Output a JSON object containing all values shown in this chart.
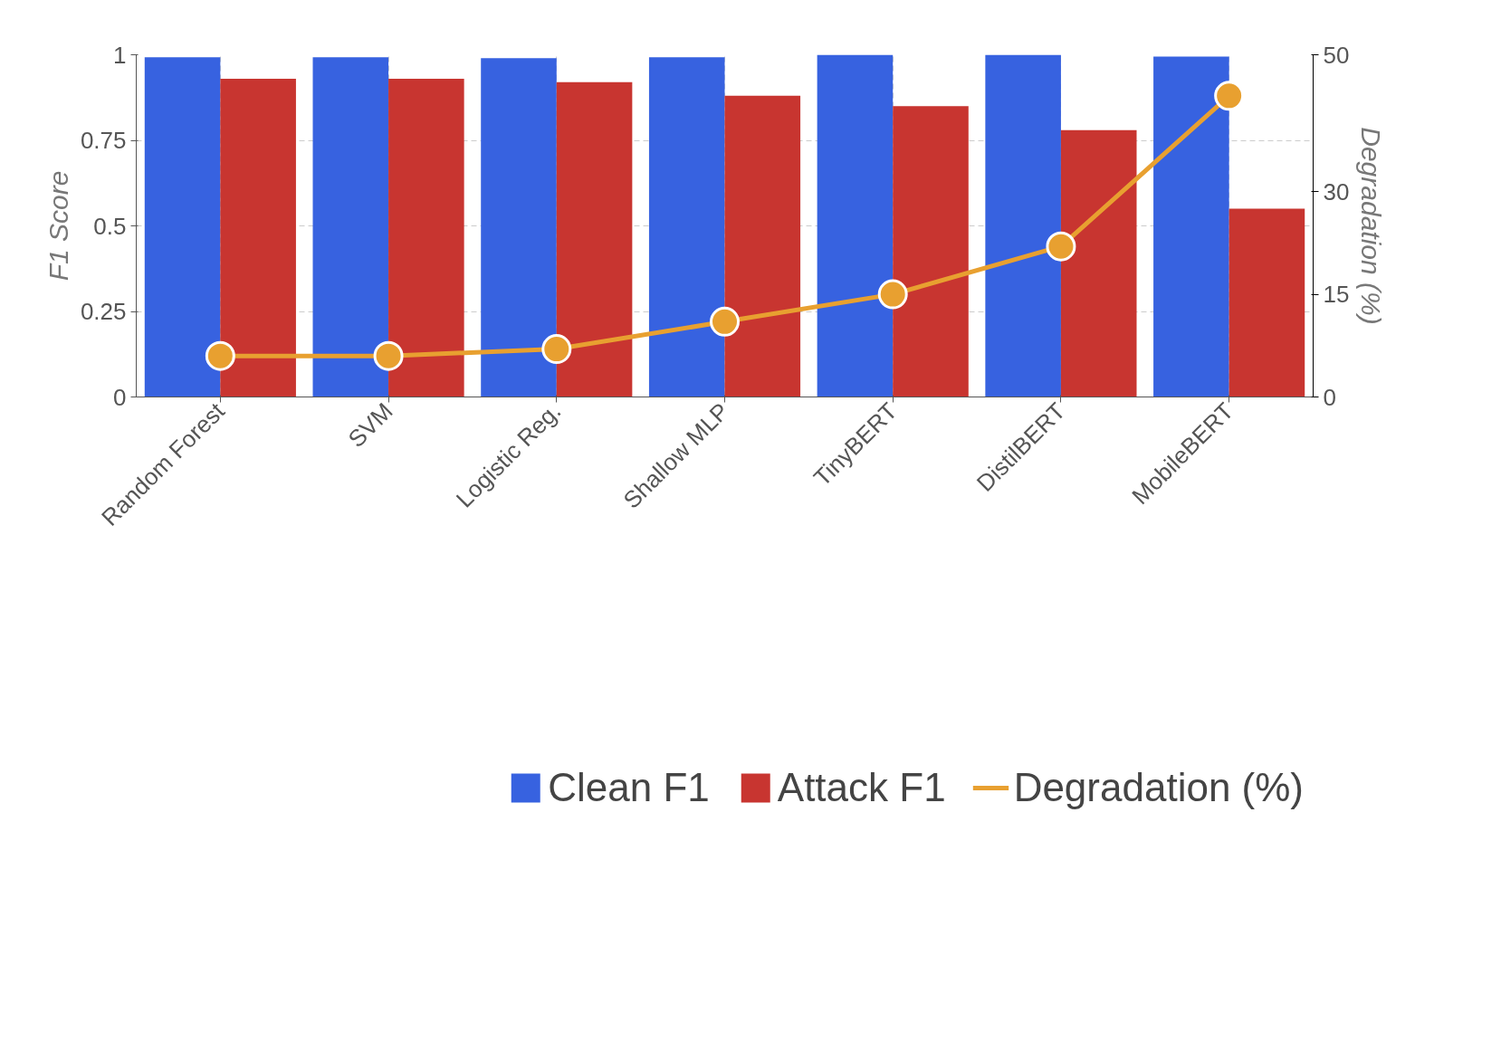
{
  "chart_data": {
    "type": "bar",
    "ylabel": "F1 Score",
    "y2label": "Degradation (%)",
    "categories": [
      "Random Forest",
      "SVM",
      "Logistic Reg.",
      "Shallow MLP",
      "TinyBERT",
      "DistilBERT",
      "MobileBERT"
    ],
    "series": [
      {
        "name": "Clean F1",
        "color": "#3762e0",
        "values": [
          0.993,
          0.993,
          0.99,
          0.993,
          1.0,
          1.0,
          0.995
        ]
      },
      {
        "name": "Attack F1",
        "color": "#c83530",
        "values": [
          0.93,
          0.93,
          0.92,
          0.88,
          0.85,
          0.78,
          0.55
        ]
      },
      {
        "name": "Degradation (%)",
        "type": "line",
        "axis": "y2",
        "color": "#e8a030",
        "marker": "circle",
        "values": [
          6,
          6,
          7,
          11,
          15,
          22,
          44
        ]
      }
    ],
    "ylim": [
      0,
      1
    ],
    "yticks": [
      0,
      0.25,
      0.5,
      0.75,
      1
    ],
    "y2lim": [
      0,
      50
    ],
    "y2ticks": [
      0,
      15,
      30,
      50
    ],
    "grid": true,
    "legend": "bottom"
  }
}
